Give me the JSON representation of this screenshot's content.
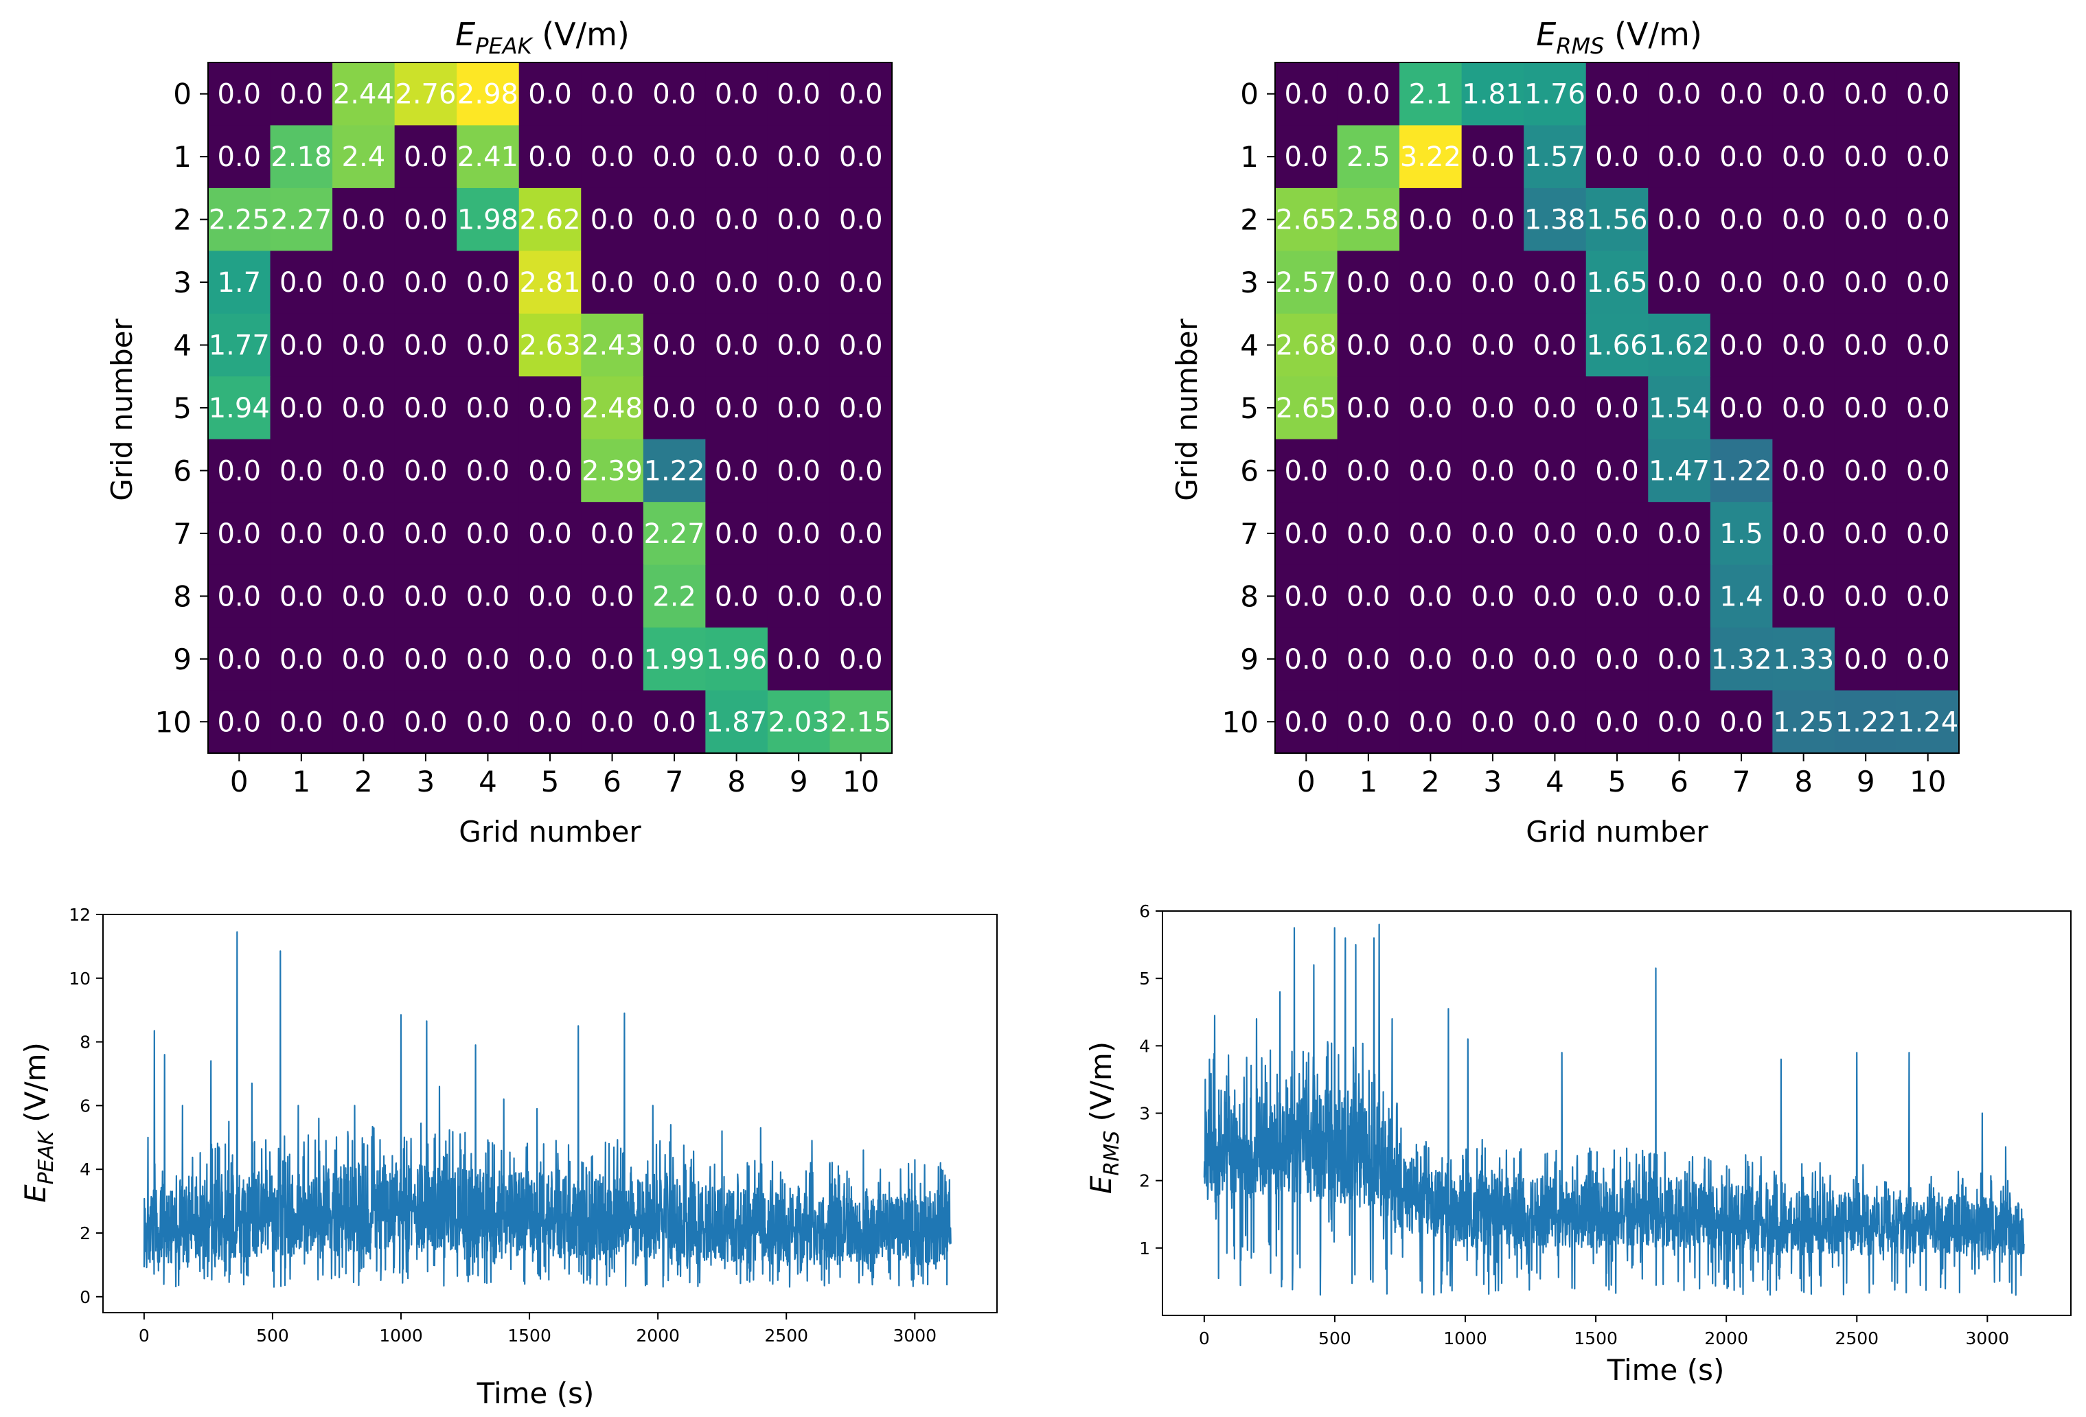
{
  "chart_data": [
    {
      "type": "heatmap",
      "title_main": "E",
      "title_sub": "PEAK",
      "title_unit": " (V/m)",
      "xlabel": "Grid number",
      "ylabel": "Grid number",
      "xticks": [
        "0",
        "1",
        "2",
        "3",
        "4",
        "5",
        "6",
        "7",
        "8",
        "9",
        "10"
      ],
      "yticks": [
        "0",
        "1",
        "2",
        "3",
        "4",
        "5",
        "6",
        "7",
        "8",
        "9",
        "10"
      ],
      "vmin": 0,
      "vmax": 2.98,
      "values": [
        [
          0.0,
          0.0,
          2.44,
          2.76,
          2.98,
          0.0,
          0.0,
          0.0,
          0.0,
          0.0,
          0.0
        ],
        [
          0.0,
          2.18,
          2.4,
          0.0,
          2.41,
          0.0,
          0.0,
          0.0,
          0.0,
          0.0,
          0.0
        ],
        [
          2.25,
          2.27,
          0.0,
          0.0,
          1.98,
          2.62,
          0.0,
          0.0,
          0.0,
          0.0,
          0.0
        ],
        [
          1.7,
          0.0,
          0.0,
          0.0,
          0.0,
          2.81,
          0.0,
          0.0,
          0.0,
          0.0,
          0.0
        ],
        [
          1.77,
          0.0,
          0.0,
          0.0,
          0.0,
          2.63,
          2.43,
          0.0,
          0.0,
          0.0,
          0.0
        ],
        [
          1.94,
          0.0,
          0.0,
          0.0,
          0.0,
          0.0,
          2.48,
          0.0,
          0.0,
          0.0,
          0.0
        ],
        [
          0.0,
          0.0,
          0.0,
          0.0,
          0.0,
          0.0,
          2.39,
          1.22,
          0.0,
          0.0,
          0.0
        ],
        [
          0.0,
          0.0,
          0.0,
          0.0,
          0.0,
          0.0,
          0.0,
          2.27,
          0.0,
          0.0,
          0.0
        ],
        [
          0.0,
          0.0,
          0.0,
          0.0,
          0.0,
          0.0,
          0.0,
          2.2,
          0.0,
          0.0,
          0.0
        ],
        [
          0.0,
          0.0,
          0.0,
          0.0,
          0.0,
          0.0,
          0.0,
          1.99,
          1.96,
          0.0,
          0.0
        ],
        [
          0.0,
          0.0,
          0.0,
          0.0,
          0.0,
          0.0,
          0.0,
          0.0,
          1.87,
          2.03,
          2.15
        ]
      ]
    },
    {
      "type": "heatmap",
      "title_main": "E",
      "title_sub": "RMS",
      "title_unit": " (V/m)",
      "xlabel": "Grid number",
      "ylabel": "Grid number",
      "xticks": [
        "0",
        "1",
        "2",
        "3",
        "4",
        "5",
        "6",
        "7",
        "8",
        "9",
        "10"
      ],
      "yticks": [
        "0",
        "1",
        "2",
        "3",
        "4",
        "5",
        "6",
        "7",
        "8",
        "9",
        "10"
      ],
      "vmin": 0,
      "vmax": 3.22,
      "values": [
        [
          0.0,
          0.0,
          2.1,
          1.81,
          1.76,
          0.0,
          0.0,
          0.0,
          0.0,
          0.0,
          0.0
        ],
        [
          0.0,
          2.5,
          3.22,
          0.0,
          1.57,
          0.0,
          0.0,
          0.0,
          0.0,
          0.0,
          0.0
        ],
        [
          2.65,
          2.58,
          0.0,
          0.0,
          1.38,
          1.56,
          0.0,
          0.0,
          0.0,
          0.0,
          0.0
        ],
        [
          2.57,
          0.0,
          0.0,
          0.0,
          0.0,
          1.65,
          0.0,
          0.0,
          0.0,
          0.0,
          0.0
        ],
        [
          2.68,
          0.0,
          0.0,
          0.0,
          0.0,
          1.66,
          1.62,
          0.0,
          0.0,
          0.0,
          0.0
        ],
        [
          2.65,
          0.0,
          0.0,
          0.0,
          0.0,
          0.0,
          1.54,
          0.0,
          0.0,
          0.0,
          0.0
        ],
        [
          0.0,
          0.0,
          0.0,
          0.0,
          0.0,
          0.0,
          1.47,
          1.22,
          0.0,
          0.0,
          0.0
        ],
        [
          0.0,
          0.0,
          0.0,
          0.0,
          0.0,
          0.0,
          0.0,
          1.5,
          0.0,
          0.0,
          0.0
        ],
        [
          0.0,
          0.0,
          0.0,
          0.0,
          0.0,
          0.0,
          0.0,
          1.4,
          0.0,
          0.0,
          0.0
        ],
        [
          0.0,
          0.0,
          0.0,
          0.0,
          0.0,
          0.0,
          0.0,
          1.32,
          1.33,
          0.0,
          0.0
        ],
        [
          0.0,
          0.0,
          0.0,
          0.0,
          0.0,
          0.0,
          0.0,
          0.0,
          1.25,
          1.22,
          1.24
        ]
      ]
    },
    {
      "type": "line",
      "xlabel": "Time (s)",
      "ylabel_main": "E",
      "ylabel_sub": "PEAK",
      "ylabel_unit": " (V/m)",
      "xlim": [
        -160,
        3320
      ],
      "ylim": [
        -0.5,
        12
      ],
      "xticks": [
        0,
        500,
        1000,
        1500,
        2000,
        2500,
        3000
      ],
      "yticks": [
        0,
        2,
        4,
        6,
        8,
        10,
        12
      ],
      "color": "#1f77b4",
      "samples": 3150,
      "series_profile": {
        "x": [
          0,
          100,
          200,
          300,
          400,
          500,
          600,
          700,
          800,
          900,
          1000,
          1100,
          1200,
          1300,
          1400,
          1500,
          1600,
          1700,
          1800,
          1900,
          2000,
          2100,
          2200,
          2300,
          2400,
          2500,
          2600,
          2700,
          2800,
          2900,
          3000,
          3140
        ],
        "baseline": [
          0.9,
          1.0,
          1.1,
          1.1,
          1.2,
          1.2,
          1.3,
          1.3,
          1.3,
          1.4,
          1.4,
          1.4,
          1.3,
          1.2,
          1.2,
          1.2,
          1.2,
          1.2,
          1.2,
          1.2,
          1.2,
          1.1,
          1.1,
          1.1,
          1.0,
          1.0,
          1.0,
          1.0,
          1.0,
          1.0,
          1.0,
          1.0
        ],
        "typical_top": [
          3.8,
          4.0,
          4.2,
          4.4,
          4.6,
          4.6,
          4.7,
          4.8,
          4.9,
          5.0,
          5.0,
          5.0,
          4.8,
          4.6,
          4.5,
          4.6,
          4.6,
          4.5,
          4.6,
          4.6,
          4.5,
          4.3,
          4.2,
          4.0,
          3.9,
          3.8,
          3.8,
          3.8,
          3.8,
          3.8,
          3.8,
          3.8
        ]
      },
      "peaks": [
        {
          "x": 15,
          "y": 5.0
        },
        {
          "x": 40,
          "y": 8.35
        },
        {
          "x": 80,
          "y": 7.6
        },
        {
          "x": 150,
          "y": 6.0
        },
        {
          "x": 260,
          "y": 7.4
        },
        {
          "x": 330,
          "y": 5.5
        },
        {
          "x": 362,
          "y": 11.45
        },
        {
          "x": 420,
          "y": 6.7
        },
        {
          "x": 530,
          "y": 10.85
        },
        {
          "x": 600,
          "y": 6.0
        },
        {
          "x": 680,
          "y": 5.6
        },
        {
          "x": 820,
          "y": 6.0
        },
        {
          "x": 1000,
          "y": 8.85
        },
        {
          "x": 1100,
          "y": 8.65
        },
        {
          "x": 1150,
          "y": 6.6
        },
        {
          "x": 1290,
          "y": 7.9
        },
        {
          "x": 1400,
          "y": 6.2
        },
        {
          "x": 1530,
          "y": 5.9
        },
        {
          "x": 1690,
          "y": 8.5
        },
        {
          "x": 1870,
          "y": 8.9
        },
        {
          "x": 1980,
          "y": 6.0
        },
        {
          "x": 2050,
          "y": 5.4
        },
        {
          "x": 2250,
          "y": 5.2
        },
        {
          "x": 2400,
          "y": 5.3
        },
        {
          "x": 2600,
          "y": 4.9
        },
        {
          "x": 2800,
          "y": 4.6
        },
        {
          "x": 3000,
          "y": 4.3
        },
        {
          "x": 3100,
          "y": 4.2
        }
      ],
      "min_value": 0.3
    },
    {
      "type": "line",
      "xlabel": "Time (s)",
      "ylabel_main": "E",
      "ylabel_sub": "RMS",
      "ylabel_unit": " (V/m)",
      "xlim": [
        -160,
        3320
      ],
      "ylim": [
        0,
        6
      ],
      "xticks": [
        0,
        500,
        1000,
        1500,
        2000,
        2500,
        3000
      ],
      "yticks": [
        1,
        2,
        3,
        4,
        5,
        6
      ],
      "color": "#1f77b4",
      "samples": 3150,
      "series_profile": {
        "x": [
          0,
          100,
          200,
          300,
          400,
          500,
          600,
          700,
          800,
          900,
          1000,
          1100,
          1200,
          1300,
          1400,
          1500,
          1600,
          1700,
          1800,
          1900,
          2000,
          2100,
          2200,
          2300,
          2400,
          2500,
          2600,
          2700,
          2800,
          2900,
          3000,
          3140
        ],
        "baseline": [
          1.6,
          1.8,
          1.8,
          1.8,
          1.7,
          1.6,
          1.6,
          1.4,
          1.2,
          1.1,
          1.0,
          1.0,
          1.0,
          1.0,
          1.0,
          1.0,
          1.0,
          1.0,
          1.0,
          1.0,
          1.0,
          0.9,
          0.9,
          0.9,
          0.9,
          0.9,
          0.9,
          0.9,
          0.9,
          0.9,
          0.9,
          0.9
        ],
        "typical_top": [
          3.6,
          3.6,
          3.6,
          3.8,
          3.8,
          3.8,
          3.8,
          3.2,
          2.5,
          2.4,
          2.4,
          2.4,
          2.3,
          2.3,
          2.3,
          2.3,
          2.3,
          2.3,
          2.3,
          2.2,
          2.2,
          2.2,
          2.1,
          2.1,
          2.1,
          2.1,
          2.0,
          2.0,
          2.0,
          2.0,
          2.0,
          1.8
        ]
      },
      "peaks": [
        {
          "x": 20,
          "y": 3.8
        },
        {
          "x": 40,
          "y": 4.45
        },
        {
          "x": 200,
          "y": 4.4
        },
        {
          "x": 290,
          "y": 4.8
        },
        {
          "x": 345,
          "y": 5.75
        },
        {
          "x": 420,
          "y": 5.2
        },
        {
          "x": 500,
          "y": 5.75
        },
        {
          "x": 540,
          "y": 5.6
        },
        {
          "x": 580,
          "y": 5.5
        },
        {
          "x": 650,
          "y": 5.6
        },
        {
          "x": 670,
          "y": 5.8
        },
        {
          "x": 720,
          "y": 4.4
        },
        {
          "x": 935,
          "y": 4.55
        },
        {
          "x": 1010,
          "y": 4.1
        },
        {
          "x": 1370,
          "y": 3.9
        },
        {
          "x": 1730,
          "y": 5.15
        },
        {
          "x": 2210,
          "y": 3.8
        },
        {
          "x": 2500,
          "y": 3.9
        },
        {
          "x": 2700,
          "y": 3.9
        },
        {
          "x": 2980,
          "y": 3.0
        },
        {
          "x": 3070,
          "y": 2.5
        }
      ],
      "min_value": 0.3,
      "min_points": [
        {
          "x": 700,
          "y": 0.32
        },
        {
          "x": 1560,
          "y": 0.45
        },
        {
          "x": 55,
          "y": 0.55
        }
      ]
    }
  ]
}
